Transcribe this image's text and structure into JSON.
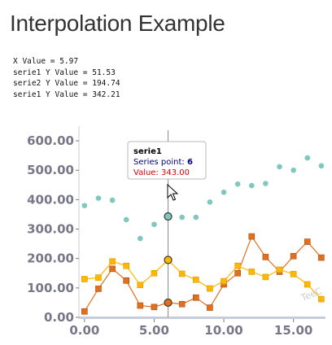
{
  "page": {
    "title": "Interpolation Example",
    "readout": [
      "X Value = 5.97",
      "serie1 Y Value = 51.53",
      "serie2 Y Value = 194.74",
      "serie1 Y Value = 342.21"
    ]
  },
  "tooltip": {
    "title": "serie1",
    "series_point_label": "Series point: ",
    "series_point_value": "6",
    "value_label": "Value: 343.00"
  },
  "watermark": "TeeC",
  "colors": {
    "series_teal": "#7ec8be",
    "series_orange": "#e07020",
    "series_yellow": "#ffb700",
    "axis_tick": "#777788",
    "cursor_line": "#888888",
    "tooltip_value": "#e00000",
    "tooltip_point": "#000080"
  },
  "chart_data": {
    "type": "scatter",
    "xlim": [
      -0.4,
      17.3
    ],
    "ylim": [
      0,
      650
    ],
    "x_ticks": [
      "0.00",
      "5.00",
      "10.00",
      "15.00"
    ],
    "y_ticks": [
      "0.00",
      "100.00",
      "200.00",
      "300.00",
      "400.00",
      "500.00",
      "600.00"
    ],
    "cursor_x": 6,
    "highlight_index": 6,
    "series": [
      {
        "marker": "circle",
        "line": false,
        "color": "#7ec8be",
        "x": [
          0,
          1,
          2,
          3,
          4,
          5,
          6,
          7,
          8,
          9,
          10,
          11,
          12,
          13,
          14,
          15,
          16,
          17
        ],
        "values": [
          380,
          405,
          398,
          332,
          268,
          316,
          343,
          340,
          340,
          392,
          425,
          453,
          448,
          455,
          512,
          500,
          542,
          515
        ]
      },
      {
        "marker": "square",
        "line": true,
        "color": "#e07020",
        "x": [
          0,
          1,
          2,
          3,
          4,
          5,
          6,
          7,
          8,
          9,
          10,
          11,
          12,
          13,
          14,
          15,
          16,
          17
        ],
        "values": [
          20,
          97,
          165,
          125,
          40,
          35,
          50,
          45,
          67,
          33,
          112,
          150,
          275,
          205,
          155,
          208,
          257,
          203
        ]
      },
      {
        "marker": "square",
        "line": true,
        "color": "#ffb700",
        "x": [
          0,
          1,
          2,
          3,
          4,
          5,
          6,
          7,
          8,
          9,
          10,
          11,
          12,
          13,
          14,
          15,
          16,
          17
        ],
        "values": [
          130,
          135,
          190,
          175,
          110,
          150,
          195,
          148,
          128,
          98,
          123,
          175,
          155,
          137,
          162,
          147,
          112,
          62
        ]
      }
    ]
  }
}
